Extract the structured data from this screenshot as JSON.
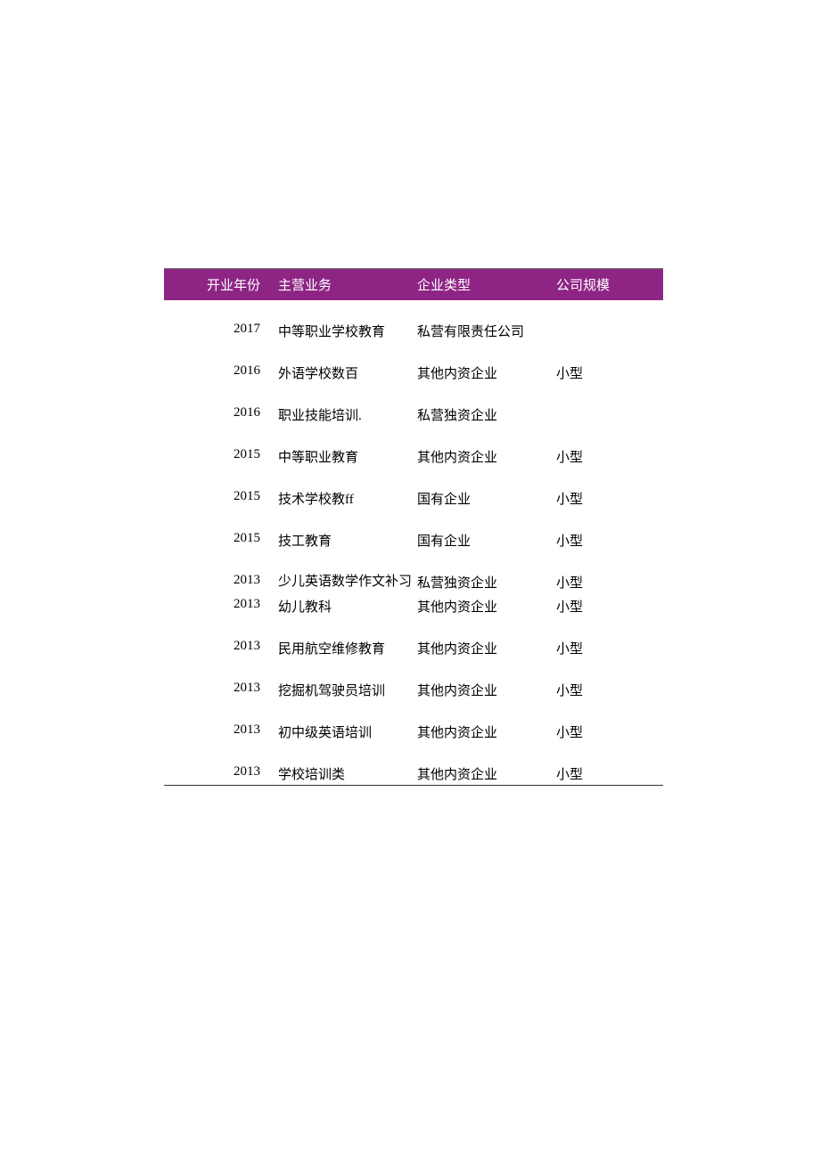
{
  "table": {
    "header_bg": "#8e2585",
    "header_fg": "#ffffff",
    "body_fg": "#000000",
    "background": "#ffffff",
    "font_size": 15,
    "columns": [
      {
        "key": "year",
        "label": "开业年份",
        "width": 124,
        "align": "right"
      },
      {
        "key": "business",
        "label": "主营业务",
        "width": 156,
        "align": "left"
      },
      {
        "key": "type",
        "label": "企业类型",
        "width": 156,
        "align": "left"
      },
      {
        "key": "size",
        "label": "公司规模",
        "width": 124,
        "align": "left"
      }
    ],
    "rows": [
      {
        "year": "2017",
        "business": "中等职业学校教育",
        "type": "私营有限责任公司",
        "size": ""
      },
      {
        "year": "2016",
        "business": "外语学校数百",
        "type": "其他内资企业",
        "size": "小型"
      },
      {
        "year": "2016",
        "business": "职业技能培训.",
        "type": "私营独资企业",
        "size": ""
      },
      {
        "year": "2015",
        "business": "中等职业教育",
        "type": "其他内资企业",
        "size": "小型"
      },
      {
        "year": "2015",
        "business": "技术学校教ff",
        "type": "国有企业",
        "size": "小型"
      },
      {
        "year": "2015",
        "business": "技工教育",
        "type": "国有企业",
        "size": "小型"
      },
      {
        "year": "2013",
        "business": "少儿英语数学作文补习",
        "type": "私营独资企业",
        "size": "小型"
      },
      {
        "year": "2013",
        "business": "幼儿教科",
        "type": "其他内资企业",
        "size": "小型"
      },
      {
        "year": "2013",
        "business": "民用航空维修教育",
        "type": "其他内资企业",
        "size": "小型"
      },
      {
        "year": "2013",
        "business": "挖掘机驾驶员培训",
        "type": "其他内资企业",
        "size": "小型"
      },
      {
        "year": "2013",
        "business": "初中级英语培训",
        "type": "其他内资企业",
        "size": "小型"
      },
      {
        "year": "2013",
        "business": "学校培训类",
        "type": "其他内资企业",
        "size": "小型"
      }
    ]
  }
}
